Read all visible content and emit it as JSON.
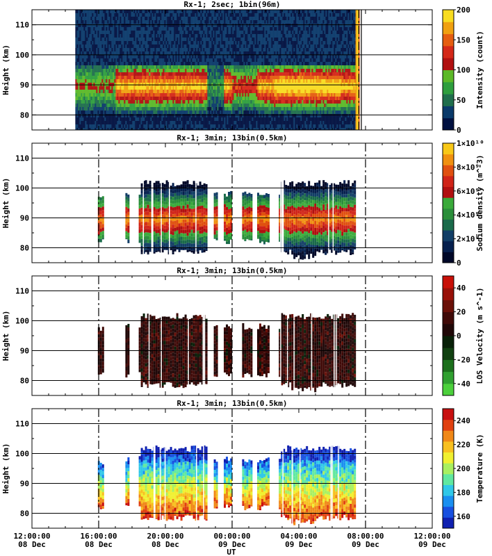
{
  "figure": {
    "xlabel": "UT"
  },
  "x_axis": {
    "range": [
      "08 Dec 12:00:00",
      "09 Dec 12:00:00"
    ],
    "tick_hours": [
      12,
      16,
      20,
      24,
      28,
      32,
      36
    ],
    "tick_times": [
      "12:00:00",
      "16:00:00",
      "20:00:00",
      "00:00:00",
      "04:00:00",
      "08:00:00",
      "12:00:00"
    ],
    "tick_dates": [
      "08 Dec",
      "08 Dec",
      "08 Dec",
      "09 Dec",
      "09 Dec",
      "09 Dec",
      "09 Dec"
    ]
  },
  "chart_data": [
    {
      "type": "heatmap",
      "title": "Rx-1;  2sec; 1bin(96m)",
      "ylabel": "Height (km)",
      "ylim": [
        75,
        115
      ],
      "yticks": [
        80,
        90,
        100,
        110
      ],
      "colorbar": {
        "label": "Intensity (count)",
        "range": [
          0,
          200
        ],
        "ticks": [
          "0",
          "50",
          "100",
          "150",
          "200"
        ],
        "colors": [
          "#001040",
          "#0a3a6a",
          "#1f6e4c",
          "#2e9e3e",
          "#5cb828",
          "#b01010",
          "#d42818",
          "#e55d10",
          "#f0a010",
          "#f8dc20"
        ]
      },
      "data_intervals_hours": [
        [
          14.6,
          31.4
        ]
      ],
      "dashed_lines_hours": [
        31.6
      ],
      "solid_lines_hours": [
        31.75
      ],
      "layer": {
        "center_km": 90,
        "edge_hour_start": 31.4
      }
    },
    {
      "type": "heatmap",
      "title": "Rx-1; 3min; 13bin(0.5km)",
      "ylabel": "Height (km)",
      "ylim": [
        75,
        115
      ],
      "yticks": [
        80,
        90,
        100,
        110
      ],
      "colorbar": {
        "label": "Sodium density (m^-3)",
        "range": [
          0,
          10000000000.0
        ],
        "ticks": [
          "0",
          "2×10⁹",
          "4×10⁹",
          "6×10⁹",
          "8×10⁹",
          "1×10¹⁰"
        ],
        "colors": [
          "#000828",
          "#06204e",
          "#123e66",
          "#1a6a4a",
          "#2a8e3a",
          "#3aaa3a",
          "#b01010",
          "#d02418",
          "#e05010",
          "#f09010",
          "#f8c818"
        ]
      },
      "data_intervals_hours": [
        [
          15.95,
          16.3
        ],
        [
          17.6,
          17.75
        ],
        [
          18.4,
          22.5
        ],
        [
          22.9,
          23.1
        ],
        [
          23.5,
          24.0
        ],
        [
          24.6,
          25.2
        ],
        [
          25.5,
          26.2
        ],
        [
          26.8,
          31.4
        ]
      ],
      "dashed_lines_hours": [
        16.0,
        24.0,
        32.0
      ],
      "solid_lines_hours": [],
      "layer": {
        "center_km": 90
      }
    },
    {
      "type": "heatmap",
      "title": "Rx-1; 3min; 13bin(0.5km)",
      "ylabel": "Height (km)",
      "ylim": [
        75,
        115
      ],
      "yticks": [
        80,
        90,
        100,
        110
      ],
      "colorbar": {
        "label": "LOS Velocity (m s^-1)",
        "range": [
          -50,
          50
        ],
        "ticks": [
          "-40",
          "-20",
          "0",
          "20",
          "40"
        ],
        "colors": [
          "#4cd03c",
          "#30a030",
          "#1c701c",
          "#104010",
          "#082008",
          "#200808",
          "#400a08",
          "#6a1008",
          "#981008",
          "#c81008"
        ]
      },
      "data_intervals_hours": [
        [
          15.95,
          16.3
        ],
        [
          17.6,
          17.75
        ],
        [
          18.4,
          22.5
        ],
        [
          22.9,
          23.1
        ],
        [
          23.5,
          24.0
        ],
        [
          24.6,
          25.2
        ],
        [
          25.5,
          26.2
        ],
        [
          26.8,
          31.4
        ]
      ],
      "dashed_lines_hours": [
        16.0,
        24.0,
        32.0
      ],
      "solid_lines_hours": [],
      "layer": {
        "center_km": 90
      }
    },
    {
      "type": "heatmap",
      "title": "Rx-1; 3min; 13bin(0.5km)",
      "ylabel": "Height (km)",
      "ylim": [
        75,
        115
      ],
      "yticks": [
        80,
        90,
        100,
        110
      ],
      "colorbar": {
        "label": "Temperature (K)",
        "range": [
          150,
          250
        ],
        "ticks": [
          "160",
          "180",
          "200",
          "220",
          "240"
        ],
        "colors": [
          "#1020b0",
          "#1850e0",
          "#1a8ff0",
          "#30c8e8",
          "#60e8a0",
          "#a8f060",
          "#f0f030",
          "#f8c020",
          "#f08818",
          "#e04010",
          "#c81010"
        ]
      },
      "data_intervals_hours": [
        [
          15.95,
          16.3
        ],
        [
          17.6,
          17.75
        ],
        [
          18.4,
          22.5
        ],
        [
          22.9,
          23.1
        ],
        [
          23.5,
          24.0
        ],
        [
          24.6,
          25.2
        ],
        [
          25.5,
          26.2
        ],
        [
          26.8,
          31.4
        ]
      ],
      "dashed_lines_hours": [
        16.0,
        24.0,
        32.0
      ],
      "solid_lines_hours": [],
      "layer": {
        "center_km": 90
      }
    }
  ]
}
